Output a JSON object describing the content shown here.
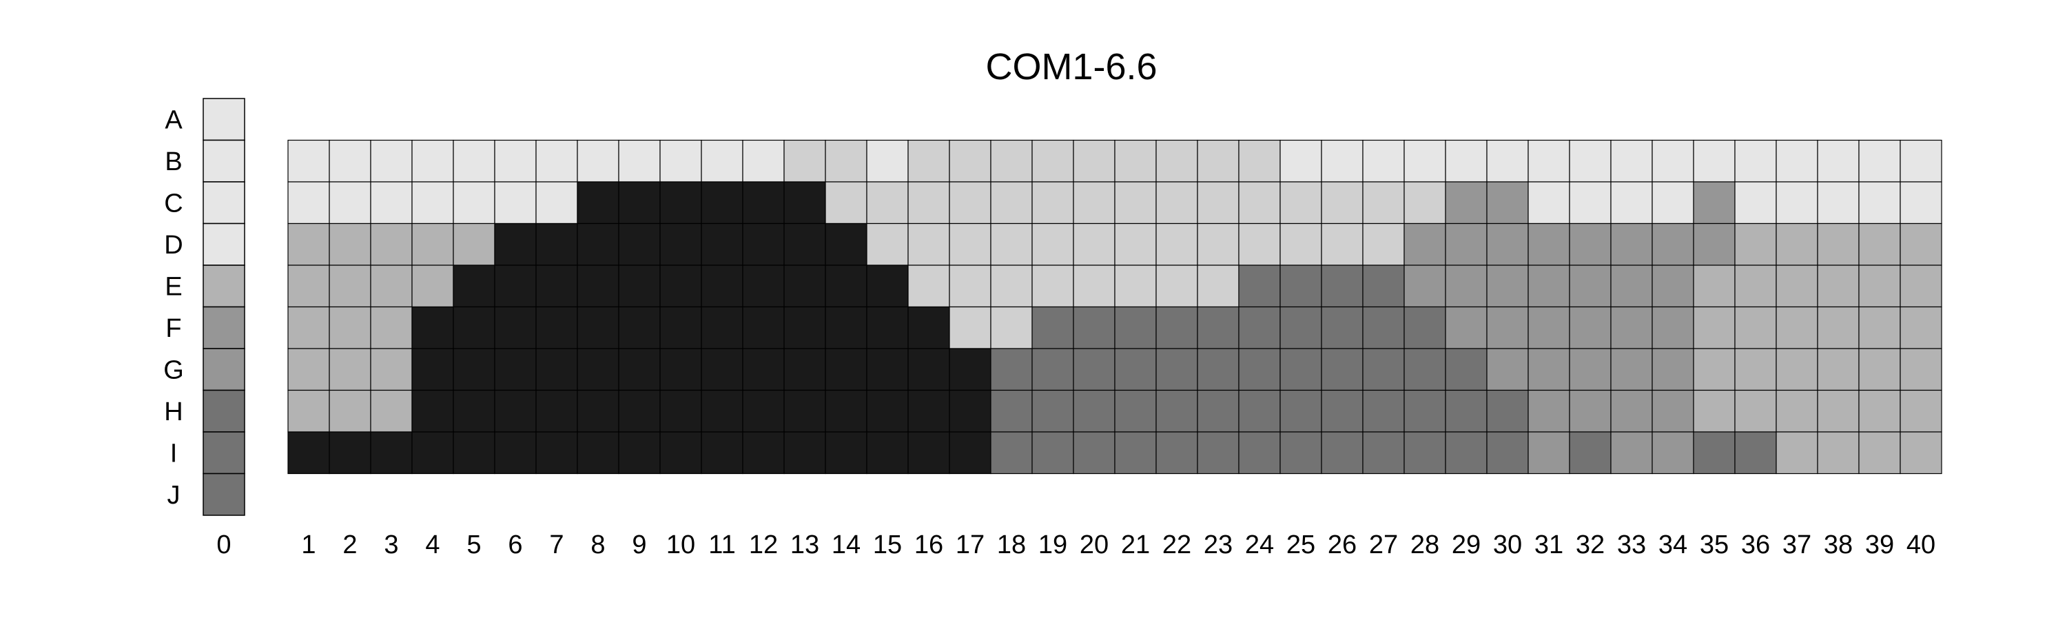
{
  "chart_data": {
    "type": "heatmap",
    "title": "COM1-6.6",
    "row_labels": [
      "A",
      "B",
      "C",
      "D",
      "E",
      "F",
      "G",
      "H",
      "I",
      "J"
    ],
    "reference_column": {
      "label": "0",
      "levels": [
        0,
        0,
        0,
        0,
        2,
        3,
        3,
        4,
        4,
        4
      ]
    },
    "column_labels": [
      "1",
      "2",
      "3",
      "4",
      "5",
      "6",
      "7",
      "8",
      "9",
      "10",
      "11",
      "12",
      "13",
      "14",
      "15",
      "16",
      "17",
      "18",
      "19",
      "20",
      "21",
      "22",
      "23",
      "24",
      "25",
      "26",
      "27",
      "28",
      "29",
      "30",
      "31",
      "32",
      "33",
      "34",
      "35",
      "36",
      "37",
      "38",
      "39",
      "40"
    ],
    "grid_rows": [
      "B",
      "C",
      "D",
      "E",
      "F",
      "G",
      "H",
      "I"
    ],
    "levels_legend": [
      "#e6e6e6",
      "#d0d0d0",
      "#b3b3b3",
      "#969696",
      "#737373",
      "#1a1a1a"
    ],
    "grid": [
      [
        0,
        0,
        0,
        0,
        0,
        0,
        0,
        0,
        0,
        0,
        0,
        0,
        1,
        1,
        0,
        1,
        1,
        1,
        1,
        1,
        1,
        1,
        1,
        1,
        0,
        0,
        0,
        0,
        0,
        0,
        0,
        0,
        0,
        0,
        0,
        0,
        0,
        0,
        0,
        0
      ],
      [
        0,
        0,
        0,
        0,
        0,
        0,
        0,
        5,
        5,
        5,
        5,
        5,
        5,
        1,
        1,
        1,
        1,
        1,
        1,
        1,
        1,
        1,
        1,
        1,
        1,
        1,
        1,
        1,
        3,
        3,
        0,
        0,
        0,
        0,
        3,
        0,
        0,
        0,
        0,
        0
      ],
      [
        2,
        2,
        2,
        2,
        2,
        5,
        5,
        5,
        5,
        5,
        5,
        5,
        5,
        5,
        1,
        1,
        1,
        1,
        1,
        1,
        1,
        1,
        1,
        1,
        1,
        1,
        1,
        3,
        3,
        3,
        3,
        3,
        3,
        3,
        3,
        2,
        2,
        2,
        2,
        2
      ],
      [
        2,
        2,
        2,
        2,
        5,
        5,
        5,
        5,
        5,
        5,
        5,
        5,
        5,
        5,
        5,
        1,
        1,
        1,
        1,
        1,
        1,
        1,
        1,
        4,
        4,
        4,
        4,
        3,
        3,
        3,
        3,
        3,
        3,
        3,
        2,
        2,
        2,
        2,
        2,
        2
      ],
      [
        2,
        2,
        2,
        5,
        5,
        5,
        5,
        5,
        5,
        5,
        5,
        5,
        5,
        5,
        5,
        5,
        1,
        1,
        4,
        4,
        4,
        4,
        4,
        4,
        4,
        4,
        4,
        4,
        3,
        3,
        3,
        3,
        3,
        3,
        2,
        2,
        2,
        2,
        2,
        2
      ],
      [
        2,
        2,
        2,
        5,
        5,
        5,
        5,
        5,
        5,
        5,
        5,
        5,
        5,
        5,
        5,
        5,
        5,
        4,
        4,
        4,
        4,
        4,
        4,
        4,
        4,
        4,
        4,
        4,
        4,
        3,
        3,
        3,
        3,
        3,
        2,
        2,
        2,
        2,
        2,
        2
      ],
      [
        2,
        2,
        2,
        5,
        5,
        5,
        5,
        5,
        5,
        5,
        5,
        5,
        5,
        5,
        5,
        5,
        5,
        4,
        4,
        4,
        4,
        4,
        4,
        4,
        4,
        4,
        4,
        4,
        4,
        4,
        3,
        3,
        3,
        3,
        2,
        2,
        2,
        2,
        2,
        2
      ],
      [
        5,
        5,
        5,
        5,
        5,
        5,
        5,
        5,
        5,
        5,
        5,
        5,
        5,
        5,
        5,
        5,
        5,
        4,
        4,
        4,
        4,
        4,
        4,
        4,
        4,
        4,
        4,
        4,
        4,
        4,
        3,
        4,
        3,
        3,
        4,
        4,
        2,
        2,
        2,
        2
      ]
    ]
  }
}
